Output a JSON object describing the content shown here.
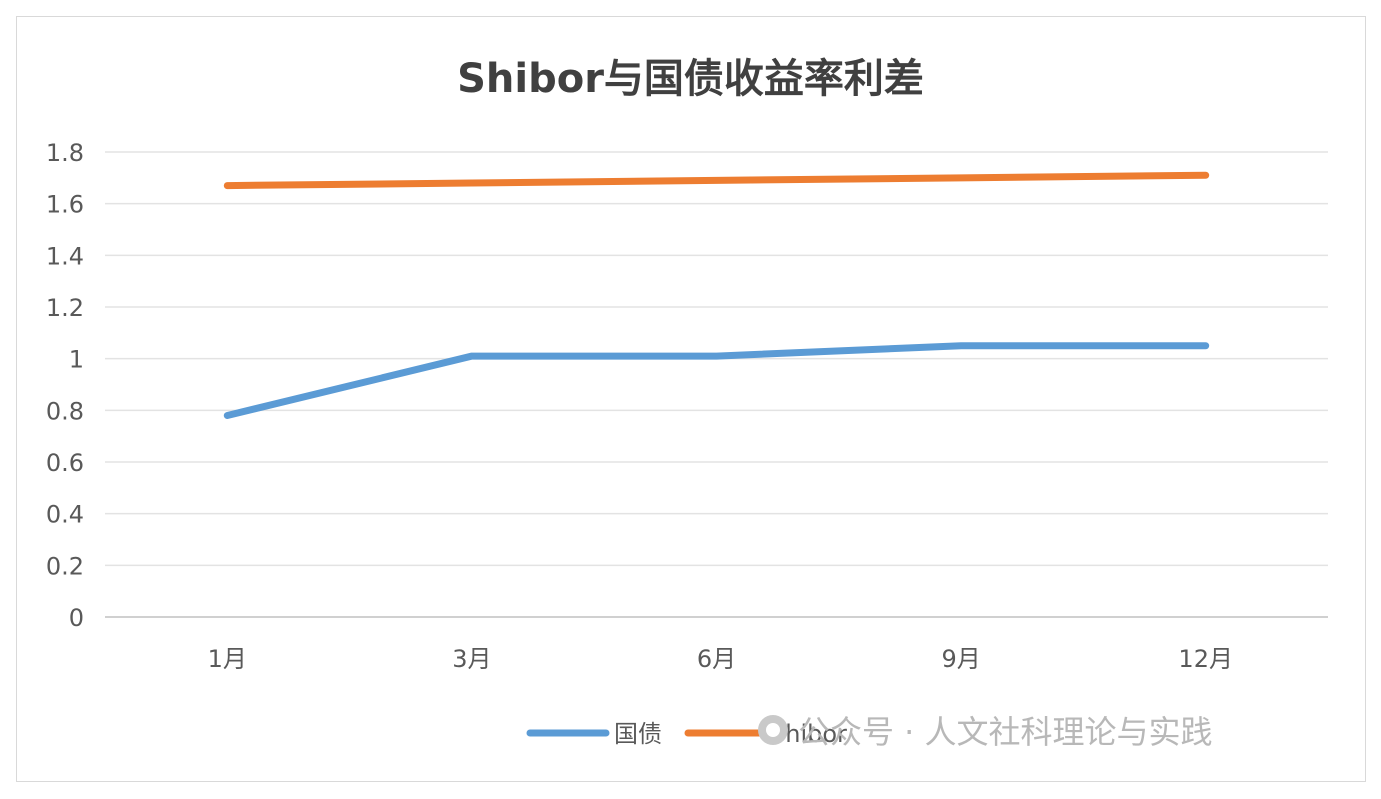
{
  "chart_data": {
    "type": "line",
    "title": "Shibor与国债收益率利差",
    "categories": [
      "1月",
      "3月",
      "6月",
      "9月",
      "12月"
    ],
    "series": [
      {
        "name": "国债",
        "color": "#5b9bd5",
        "values": [
          0.78,
          1.01,
          1.01,
          1.05,
          1.05
        ]
      },
      {
        "name": "Shibor",
        "color": "#ed7d31",
        "values": [
          1.67,
          1.68,
          1.69,
          1.7,
          1.71
        ]
      }
    ],
    "yticks": [
      "0",
      "0.2",
      "0.4",
      "0.6",
      "0.8",
      "1",
      "1.2",
      "1.4",
      "1.6",
      "1.8"
    ],
    "ylim": [
      0,
      1.8
    ],
    "grid": true,
    "legend": "bottom"
  },
  "watermark": {
    "text": "公众号 · 人文社科理论与实践"
  }
}
